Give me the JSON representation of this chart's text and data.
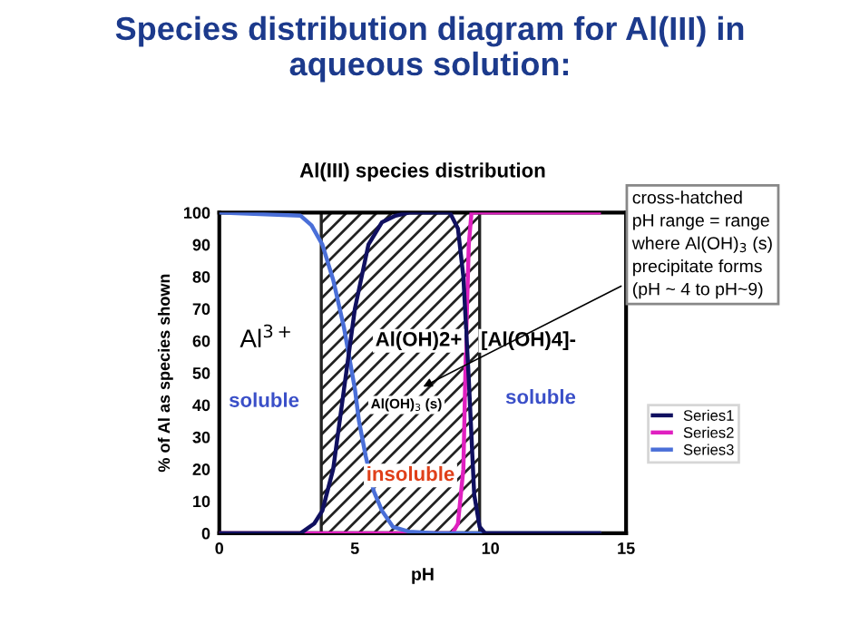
{
  "chart_data": {
    "type": "line",
    "title": "Species distribution diagram for Al(III) in\naqueous solution:",
    "subtitle": "Al(III) species distribution",
    "xlabel": "pH",
    "ylabel": "% of Al as species shown",
    "series": [
      {
        "name": "Series1",
        "color": "#101060",
        "x": [
          0,
          3,
          3.5,
          3.8,
          4.2,
          4.6,
          5.0,
          5.5,
          6.0,
          6.5,
          7.0,
          8.5,
          8.8,
          9.0,
          9.2,
          9.4,
          9.6,
          9.8,
          14
        ],
        "values": [
          0,
          0,
          3,
          7,
          20,
          45,
          70,
          90,
          97,
          99,
          100,
          100,
          95,
          80,
          48,
          12,
          2,
          0,
          0
        ]
      },
      {
        "name": "Series2",
        "color": "#e020c0",
        "x": [
          0,
          8.6,
          8.8,
          9.0,
          9.1,
          9.2,
          9.3,
          14
        ],
        "values": [
          0,
          0,
          3,
          20,
          60,
          90,
          100,
          100
        ]
      },
      {
        "name": "Series3",
        "color": "#4a6fd8",
        "x": [
          0,
          3.0,
          3.4,
          3.8,
          4.2,
          4.6,
          5.0,
          5.15,
          5.4,
          5.7,
          6.0,
          6.4,
          7.0,
          8.0,
          14
        ],
        "values": [
          100,
          99,
          96,
          90,
          79,
          64,
          45,
          35,
          24,
          13,
          7,
          2,
          0.5,
          0,
          0
        ]
      }
    ],
    "xlim": [
      0,
      15
    ],
    "ylim": [
      0,
      100
    ],
    "xticks": [
      0,
      5,
      10,
      15
    ],
    "yticks": [
      0,
      10,
      20,
      30,
      40,
      50,
      60,
      70,
      80,
      90,
      100
    ],
    "bands": [
      {
        "axis": "x",
        "from": 3.76,
        "to": 9.6
      }
    ],
    "annotations": [
      "Al$^{3+}$",
      "soluble",
      "Al(OH)2+",
      "[Al(OH)4]-",
      "soluble",
      "Al(OH)$_{3}$ (s)",
      "insoluble",
      "cross-hatched\npH range = range\nwhere Al(OH)$_{3}$ (s)\nprecipitate forms\n(pH ~ 4 to pH~9)"
    ],
    "legend": "right",
    "grid": false,
    "marker": "none",
    "line_style": "solid"
  }
}
